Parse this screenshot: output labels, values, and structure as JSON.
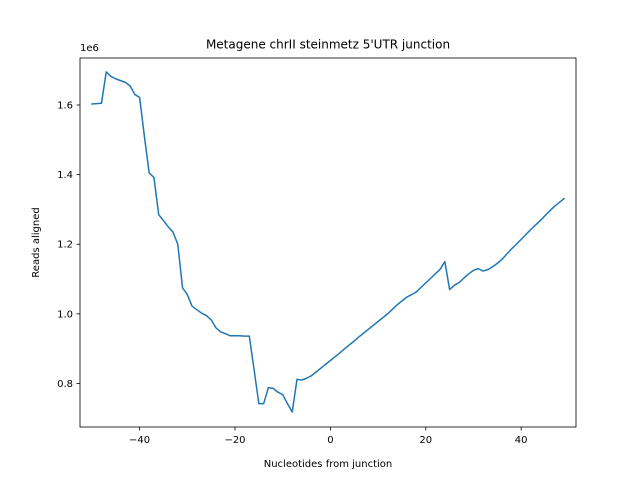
{
  "chart_data": {
    "type": "line",
    "title": "Metagene chrII steinmetz 5'UTR junction",
    "xlabel": "Nucleotides from junction",
    "ylabel": "Reads aligned",
    "y_offset_label": "1e6",
    "xlim": [
      -52.5,
      51.5
    ],
    "ylim": [
      0.675,
      1.735
    ],
    "x_ticks": [
      -40,
      -20,
      0,
      20,
      40
    ],
    "x_tick_labels": [
      "−40",
      "−20",
      "0",
      "20",
      "40"
    ],
    "y_ticks": [
      0.8,
      1.0,
      1.2,
      1.4,
      1.6
    ],
    "y_tick_labels": [
      "0.8",
      "1.0",
      "1.2",
      "1.4",
      "1.6"
    ],
    "grid": false,
    "color": "#1f77b4",
    "series": [
      {
        "x": [
          -50,
          -48,
          -47,
          -46,
          -45,
          -44,
          -43,
          -42,
          -41,
          -40,
          -39,
          -38,
          -37,
          -36,
          -35,
          -34,
          -33,
          -32,
          -31,
          -30,
          -29,
          -28,
          -27,
          -26,
          -25,
          -24,
          -23,
          -22,
          -21,
          -20,
          -19,
          -18,
          -17,
          -16,
          -15,
          -14,
          -13,
          -12,
          -11,
          -10,
          -9,
          -8,
          -7,
          -6,
          -5,
          -4,
          -3,
          -2,
          -1,
          0,
          1,
          2,
          3,
          4,
          5,
          6,
          7,
          8,
          9,
          10,
          11,
          12,
          13,
          14,
          15,
          16,
          17,
          18,
          19,
          20,
          21,
          22,
          23,
          24,
          25,
          26,
          27,
          28,
          29,
          30,
          31,
          32,
          33,
          34,
          35,
          36,
          37,
          38,
          39,
          40,
          41,
          42,
          43,
          44,
          45,
          46,
          47,
          48,
          49
        ],
        "values": [
          1.603,
          1.605,
          1.695,
          1.682,
          1.675,
          1.67,
          1.665,
          1.655,
          1.63,
          1.622,
          1.51,
          1.405,
          1.392,
          1.285,
          1.268,
          1.25,
          1.235,
          1.2,
          1.075,
          1.055,
          1.022,
          1.012,
          1.002,
          0.995,
          0.983,
          0.96,
          0.948,
          0.943,
          0.937,
          0.937,
          0.937,
          0.936,
          0.936,
          0.84,
          0.742,
          0.742,
          0.788,
          0.786,
          0.775,
          0.768,
          0.742,
          0.718,
          0.812,
          0.81,
          0.815,
          0.822,
          0.833,
          0.844,
          0.855,
          0.866,
          0.877,
          0.888,
          0.9,
          0.911,
          0.922,
          0.934,
          0.945,
          0.956,
          0.967,
          0.978,
          0.989,
          1.0,
          1.013,
          1.026,
          1.037,
          1.048,
          1.055,
          1.063,
          1.076,
          1.089,
          1.102,
          1.115,
          1.128,
          1.15,
          1.07,
          1.082,
          1.09,
          1.103,
          1.115,
          1.125,
          1.13,
          1.123,
          1.127,
          1.135,
          1.145,
          1.157,
          1.172,
          1.187,
          1.2,
          1.214,
          1.228,
          1.242,
          1.255,
          1.268,
          1.282,
          1.296,
          1.309,
          1.32,
          1.331
        ]
      }
    ]
  }
}
